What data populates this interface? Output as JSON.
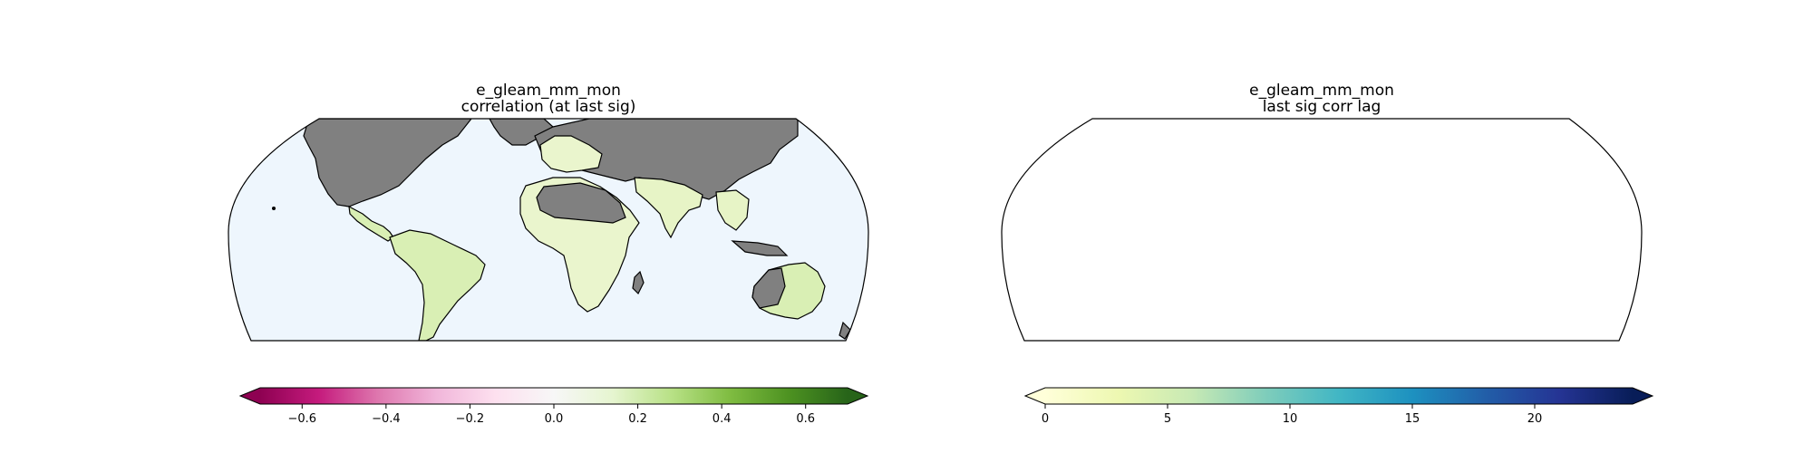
{
  "panels": [
    {
      "title_line1": "e_gleam_mm_mon",
      "title_line2": "correlation (at last sig)",
      "colorbar": {
        "colormap": "PiYG",
        "extend": "both",
        "range": [
          -0.7,
          0.7
        ],
        "ticks": [
          -0.6,
          -0.4,
          -0.2,
          0.0,
          0.2,
          0.4,
          0.6
        ],
        "tick_labels": [
          "−0.6",
          "−0.4",
          "−0.2",
          "0.0",
          "0.2",
          "0.4",
          "0.6"
        ],
        "colors": [
          "#8e0152",
          "#c51b7d",
          "#de77ae",
          "#f1b6da",
          "#fde0ef",
          "#f7f7f7",
          "#e6f5d0",
          "#b8e186",
          "#7fbc41",
          "#4d9221",
          "#276419"
        ]
      }
    },
    {
      "title_line1": "e_gleam_mm_mon",
      "title_line2": "last sig corr lag",
      "colorbar": {
        "colormap": "YlGnBu",
        "extend": "both",
        "range": [
          0,
          24
        ],
        "ticks": [
          0,
          5,
          10,
          15,
          20
        ],
        "tick_labels": [
          "0",
          "5",
          "10",
          "15",
          "20"
        ],
        "colors": [
          "#ffffd9",
          "#edf8b1",
          "#c7e9b4",
          "#7fcdbb",
          "#41b6c4",
          "#1d91c0",
          "#225ea8",
          "#253494",
          "#081d58"
        ]
      }
    }
  ],
  "map_colors": {
    "ocean": "#eef6fd",
    "masked_land": "#808080",
    "border": "#000000"
  }
}
